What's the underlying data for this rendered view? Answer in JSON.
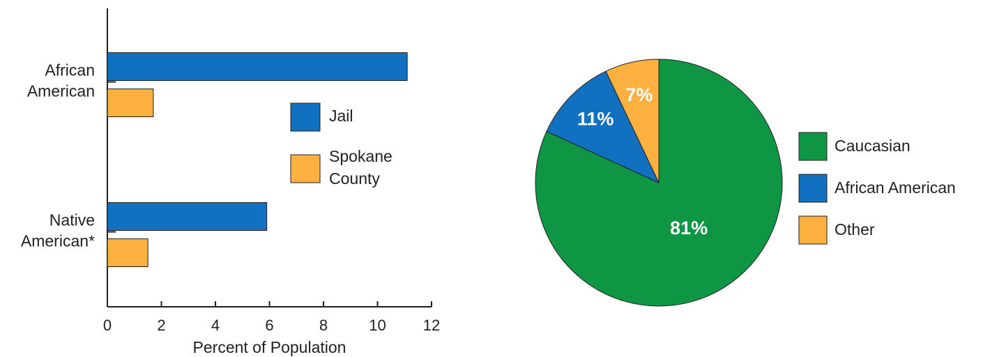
{
  "chart_data": [
    {
      "type": "bar",
      "orientation": "horizontal",
      "categories": [
        "African American",
        "Native American*"
      ],
      "series": [
        {
          "name": "Jail",
          "color": "#1170c0",
          "values": [
            11.1,
            5.9
          ]
        },
        {
          "name": "Spokane County",
          "color": "#fbb040",
          "values": [
            1.7,
            1.5
          ]
        }
      ],
      "xlim": [
        0,
        12
      ],
      "xticks": [
        0,
        2,
        4,
        6,
        8,
        10,
        12
      ],
      "x_label": "Percent of Population"
    },
    {
      "type": "pie",
      "categories": [
        "Caucasian",
        "African American",
        "Other"
      ],
      "values": [
        81,
        11,
        7
      ],
      "value_labels": [
        "81%",
        "11%",
        "7%"
      ],
      "colors": [
        "#0f9644",
        "#1170c0",
        "#fbb040"
      ]
    }
  ]
}
